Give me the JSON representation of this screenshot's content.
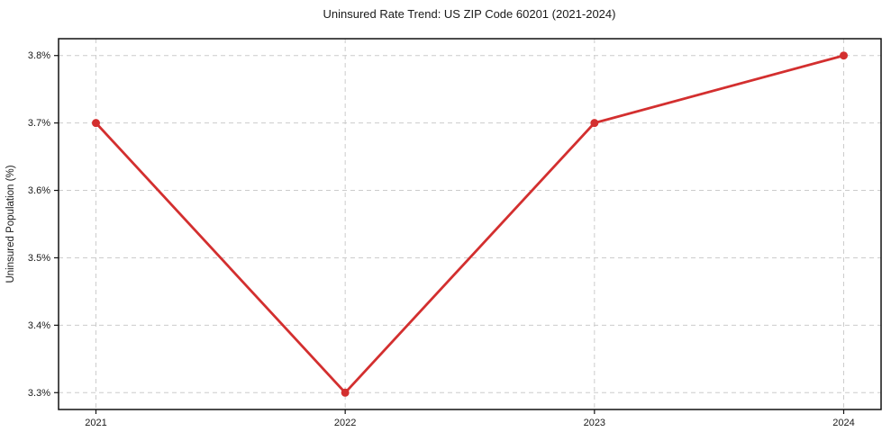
{
  "chart_data": {
    "type": "line",
    "title": "Uninsured Rate Trend: US ZIP Code 60201 (2021-2024)",
    "xlabel": "",
    "ylabel": "Uninsured Population (%)",
    "x": [
      2021,
      2022,
      2023,
      2024
    ],
    "series": [
      {
        "name": "uninsured-rate",
        "values": [
          3.7,
          3.3,
          3.7,
          3.8
        ],
        "color": "#d32f2f",
        "marker": "circle"
      }
    ],
    "xlim": [
      2020.85,
      2024.15
    ],
    "ylim": [
      3.275,
      3.825
    ],
    "xticks": {
      "values": [
        2021,
        2022,
        2023,
        2024
      ],
      "labels": [
        "2021",
        "2022",
        "2023",
        "2024"
      ]
    },
    "yticks": {
      "values": [
        3.3,
        3.4,
        3.5,
        3.6,
        3.7,
        3.8
      ],
      "labels": [
        "3.3%",
        "3.4%",
        "3.5%",
        "3.6%",
        "3.7%",
        "3.8%"
      ]
    },
    "grid": true,
    "grid_color": "#cccccc",
    "grid_dash": "5 4",
    "axis_color": "#111111",
    "text_color": "#1a1a1a",
    "background": "#ffffff",
    "legend": "none"
  }
}
